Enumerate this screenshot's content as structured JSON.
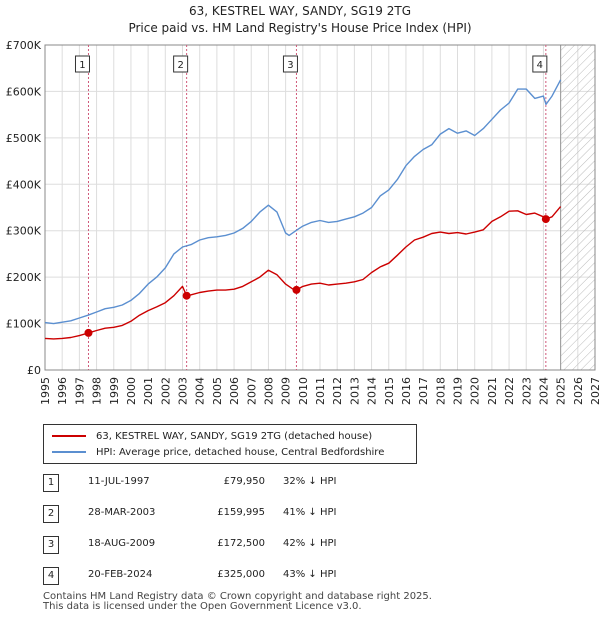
{
  "title_line1": "63, KESTREL WAY, SANDY, SG19 2TG",
  "title_line2": "Price paid vs. HM Land Registry's House Price Index (HPI)",
  "legend": {
    "property_label": "63, KESTREL WAY, SANDY, SG19 2TG (detached house)",
    "hpi_label": "HPI: Average price, detached house, Central Bedfordshire"
  },
  "sales": [
    {
      "num": "1",
      "date": "11-JUL-1997",
      "price": "£79,950",
      "delta": "32% ↓ HPI"
    },
    {
      "num": "2",
      "date": "28-MAR-2003",
      "price": "£159,995",
      "delta": "41% ↓ HPI"
    },
    {
      "num": "3",
      "date": "18-AUG-2009",
      "price": "£172,500",
      "delta": "42% ↓ HPI"
    },
    {
      "num": "4",
      "date": "20-FEB-2024",
      "price": "£325,000",
      "delta": "43% ↓ HPI"
    }
  ],
  "footer_line1": "Contains HM Land Registry data © Crown copyright and database right 2025.",
  "footer_line2": "This data is licensed under the Open Government Licence v3.0.",
  "colors": {
    "property": "#cc0000",
    "hpi": "#5b8fd0",
    "marker_line": "#d05a7a",
    "grid": "#dddddd"
  },
  "chart_data": {
    "type": "line",
    "title": "Price paid vs. HM Land Registry's House Price Index (HPI)",
    "xlim": [
      1995,
      2027
    ],
    "ylim": [
      0,
      700000
    ],
    "x_ticks": [
      1995,
      1996,
      1997,
      1998,
      1999,
      2000,
      2001,
      2002,
      2003,
      2004,
      2005,
      2006,
      2007,
      2008,
      2009,
      2010,
      2011,
      2012,
      2013,
      2014,
      2015,
      2016,
      2017,
      2018,
      2019,
      2020,
      2021,
      2022,
      2023,
      2024,
      2025,
      2026,
      2027
    ],
    "y_ticks": [
      {
        "value": 0,
        "label": "£0"
      },
      {
        "value": 100000,
        "label": "£100K"
      },
      {
        "value": 200000,
        "label": "£200K"
      },
      {
        "value": 300000,
        "label": "£300K"
      },
      {
        "value": 400000,
        "label": "£400K"
      },
      {
        "value": 500000,
        "label": "£500K"
      },
      {
        "value": 600000,
        "label": "£600K"
      },
      {
        "value": 700000,
        "label": "£700K"
      }
    ],
    "future_from": 2025.0,
    "series": [
      {
        "name": "HPI: Average price, detached house, Central Bedfordshire",
        "x": [
          1995.0,
          1995.5,
          1996.0,
          1996.5,
          1997.0,
          1997.5,
          1998.0,
          1998.5,
          1999.0,
          1999.5,
          2000.0,
          2000.5,
          2001.0,
          2001.5,
          2002.0,
          2002.5,
          2003.0,
          2003.5,
          2004.0,
          2004.5,
          2005.0,
          2005.5,
          2006.0,
          2006.5,
          2007.0,
          2007.5,
          2008.0,
          2008.5,
          2009.0,
          2009.2,
          2009.6,
          2010.0,
          2010.5,
          2011.0,
          2011.5,
          2012.0,
          2012.5,
          2013.0,
          2013.5,
          2014.0,
          2014.5,
          2015.0,
          2015.5,
          2016.0,
          2016.5,
          2017.0,
          2017.5,
          2018.0,
          2018.5,
          2019.0,
          2019.5,
          2020.0,
          2020.5,
          2021.0,
          2021.5,
          2022.0,
          2022.5,
          2023.0,
          2023.5,
          2024.0,
          2024.15,
          2024.5,
          2025.0
        ],
        "values": [
          102000,
          100000,
          103000,
          106000,
          112000,
          118000,
          125000,
          132000,
          135000,
          140000,
          150000,
          165000,
          185000,
          200000,
          220000,
          250000,
          265000,
          270000,
          280000,
          285000,
          287000,
          290000,
          295000,
          305000,
          320000,
          340000,
          355000,
          340000,
          295000,
          290000,
          300000,
          310000,
          318000,
          322000,
          318000,
          320000,
          325000,
          330000,
          338000,
          350000,
          375000,
          388000,
          410000,
          440000,
          460000,
          475000,
          485000,
          508000,
          520000,
          510000,
          515000,
          505000,
          520000,
          540000,
          560000,
          575000,
          605000,
          605000,
          585000,
          590000,
          572000,
          590000,
          625000
        ]
      },
      {
        "name": "63, KESTREL WAY, SANDY, SG19 2TG (detached house)",
        "x": [
          1995.0,
          1995.5,
          1996.0,
          1996.5,
          1997.0,
          1997.53,
          1998.0,
          1998.5,
          1999.0,
          1999.5,
          2000.0,
          2000.5,
          2001.0,
          2001.5,
          2002.0,
          2002.5,
          2003.0,
          2003.24,
          2003.5,
          2004.0,
          2004.5,
          2005.0,
          2005.5,
          2006.0,
          2006.5,
          2007.0,
          2007.5,
          2008.0,
          2008.5,
          2009.0,
          2009.4,
          2009.63,
          2010.0,
          2010.5,
          2011.0,
          2011.5,
          2012.0,
          2012.5,
          2013.0,
          2013.5,
          2014.0,
          2014.5,
          2015.0,
          2015.5,
          2016.0,
          2016.5,
          2017.0,
          2017.5,
          2018.0,
          2018.5,
          2019.0,
          2019.5,
          2020.0,
          2020.5,
          2021.0,
          2021.5,
          2022.0,
          2022.5,
          2023.0,
          2023.5,
          2024.0,
          2024.14,
          2024.5,
          2025.0
        ],
        "values": [
          68000,
          67000,
          68000,
          70000,
          74000,
          79950,
          85000,
          90000,
          92000,
          96000,
          105000,
          118000,
          128000,
          136000,
          145000,
          160000,
          180000,
          159995,
          162000,
          167000,
          170000,
          172000,
          172000,
          174000,
          180000,
          190000,
          200000,
          215000,
          205000,
          185000,
          175000,
          172500,
          180000,
          185000,
          187000,
          183000,
          185000,
          187000,
          190000,
          195000,
          210000,
          222000,
          230000,
          247000,
          265000,
          280000,
          286000,
          294000,
          297000,
          294000,
          296000,
          293000,
          297000,
          302000,
          320000,
          330000,
          342000,
          343000,
          335000,
          338000,
          330000,
          325000,
          330000,
          352000
        ]
      }
    ],
    "markers": [
      {
        "label": "1",
        "x": 1997.53,
        "value": 79950
      },
      {
        "label": "2",
        "x": 2003.24,
        "value": 159995
      },
      {
        "label": "3",
        "x": 2009.63,
        "value": 172500
      },
      {
        "label": "4",
        "x": 2024.14,
        "value": 325000
      }
    ]
  }
}
